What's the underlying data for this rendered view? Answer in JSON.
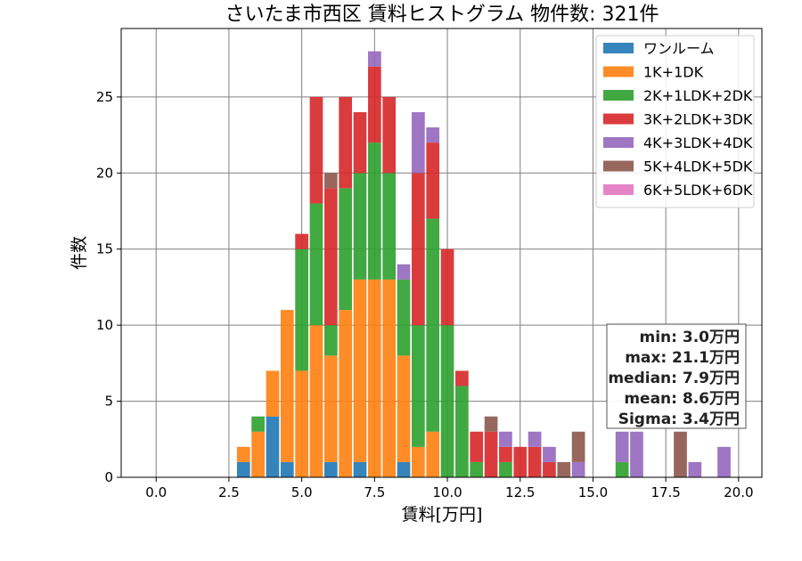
{
  "chart_data": {
    "type": "bar",
    "stacked": true,
    "title": "さいたま市西区 賃料ヒストグラム 物件数: 321件",
    "xlabel": "賃料[万円]",
    "ylabel": "件数",
    "xlim": [
      -1.2,
      20.8
    ],
    "ylim": [
      0,
      29.5
    ],
    "bin_width": 0.5,
    "xticks": [
      0,
      2.5,
      5,
      7.5,
      10,
      12.5,
      15,
      17.5,
      20
    ],
    "xtick_labels": [
      "0.0",
      "2.5",
      "5.0",
      "7.5",
      "10.0",
      "12.5",
      "15.0",
      "17.5",
      "20.0"
    ],
    "yticks": [
      0,
      5,
      10,
      15,
      20,
      25
    ],
    "ytick_labels": [
      "0",
      "5",
      "10",
      "15",
      "20",
      "25"
    ],
    "grid": true,
    "legend_position": "top-right",
    "x": [
      3.0,
      3.5,
      4.0,
      4.5,
      5.0,
      5.5,
      6.0,
      6.5,
      7.0,
      7.5,
      8.0,
      8.5,
      9.0,
      9.5,
      10.0,
      10.5,
      11.0,
      11.5,
      12.0,
      12.5,
      13.0,
      13.5,
      14.0,
      14.5,
      15.0,
      15.5,
      16.0,
      16.5,
      17.0,
      17.5,
      18.0,
      18.5,
      19.0,
      19.5
    ],
    "series": [
      {
        "name": "ワンルーム",
        "color": "#1f77b4",
        "values": [
          1,
          0,
          4,
          1,
          0,
          0,
          1,
          0,
          1,
          0,
          0,
          1,
          0,
          0,
          0,
          0,
          0,
          0,
          0,
          0,
          0,
          0,
          0,
          0,
          0,
          0,
          0,
          0,
          0,
          0,
          0,
          0,
          0,
          0
        ]
      },
      {
        "name": "1K+1DK",
        "color": "#ff7f0e",
        "values": [
          1,
          3,
          3,
          10,
          7,
          10,
          7,
          11,
          12,
          13,
          13,
          7,
          2,
          3,
          0,
          0,
          0,
          0,
          0,
          0,
          0,
          0,
          0,
          0,
          0,
          0,
          0,
          0,
          0,
          0,
          0,
          0,
          0,
          0
        ]
      },
      {
        "name": "2K+1LDK+2DK",
        "color": "#2ca02c",
        "values": [
          0,
          1,
          0,
          0,
          8,
          8,
          2,
          8,
          7,
          9,
          7,
          5,
          8,
          14,
          10,
          6,
          1,
          0,
          1,
          0,
          0,
          0,
          0,
          0,
          0,
          0,
          1,
          0,
          0,
          0,
          0,
          0,
          0,
          0
        ]
      },
      {
        "name": "3K+2LDK+3DK",
        "color": "#d62728",
        "values": [
          0,
          0,
          0,
          0,
          1,
          7,
          9,
          6,
          4,
          5,
          5,
          0,
          10,
          5,
          5,
          1,
          2,
          3,
          1,
          2,
          2,
          1,
          0,
          0,
          0,
          0,
          0,
          0,
          0,
          0,
          0,
          0,
          0,
          0
        ]
      },
      {
        "name": "4K+3LDK+4DK",
        "color": "#9467bd",
        "values": [
          0,
          0,
          0,
          0,
          0,
          0,
          0,
          0,
          0,
          1,
          0,
          1,
          4,
          1,
          0,
          0,
          0,
          0,
          1,
          0,
          1,
          1,
          0,
          1,
          0,
          0,
          2,
          3,
          0,
          0,
          0,
          1,
          0,
          2
        ]
      },
      {
        "name": "5K+4LDK+5DK",
        "color": "#8c564b",
        "values": [
          0,
          0,
          0,
          0,
          0,
          0,
          1,
          0,
          0,
          0,
          0,
          0,
          0,
          0,
          0,
          0,
          0,
          1,
          0,
          0,
          0,
          0,
          1,
          2,
          0,
          0,
          0,
          0,
          0,
          0,
          3,
          0,
          0,
          0
        ]
      },
      {
        "name": "6K+5LDK+6DK",
        "color": "#e377c2",
        "values": [
          0,
          0,
          0,
          0,
          0,
          0,
          0,
          0,
          0,
          0,
          0,
          0,
          0,
          0,
          0,
          0,
          0,
          0,
          0,
          0,
          0,
          0,
          0,
          0,
          0,
          0,
          0,
          0,
          0,
          0,
          0,
          0,
          0,
          0
        ]
      }
    ],
    "annotation": [
      "min: 3.0万円",
      "max: 21.1万円",
      "median: 7.9万円",
      "mean: 8.6万円",
      "Sigma: 3.4万円"
    ]
  }
}
